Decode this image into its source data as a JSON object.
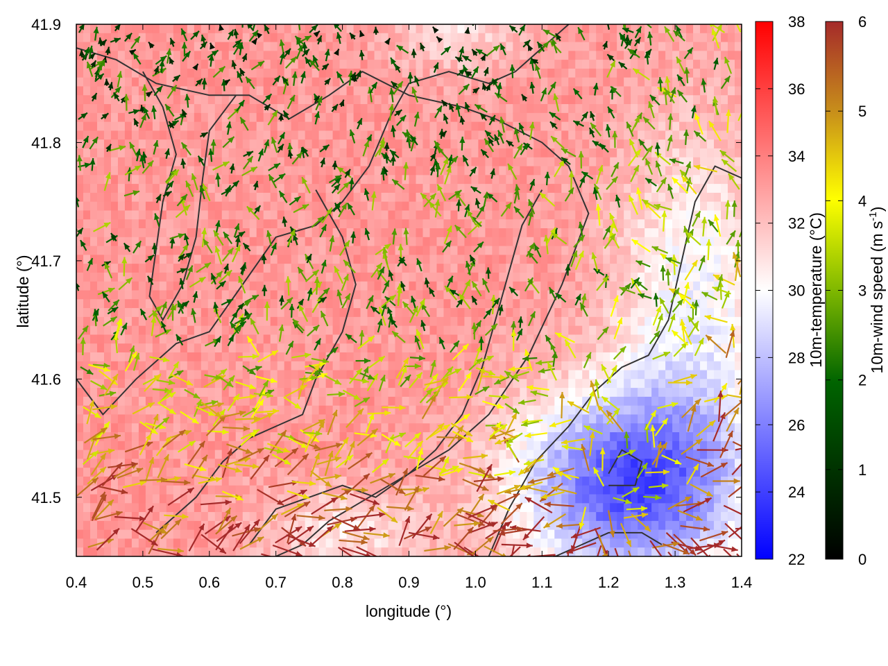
{
  "chart_data": {
    "type": "heatmap",
    "title": "",
    "xlabel": "longitude (°)",
    "ylabel": "latitude (°)",
    "xlim": [
      0.4,
      1.4
    ],
    "ylim": [
      41.45,
      41.9
    ],
    "xticks": [
      "0.4",
      "0.5",
      "0.6",
      "0.7",
      "0.8",
      "0.9",
      "1.0",
      "1.1",
      "1.2",
      "1.3",
      "1.4"
    ],
    "yticks": [
      "41.5",
      "41.6",
      "41.7",
      "41.8",
      "41.9"
    ],
    "temperature_colorbar": {
      "label": "10m-temperature (°C)",
      "range": [
        22,
        38
      ],
      "ticks": [
        "22",
        "24",
        "26",
        "28",
        "30",
        "32",
        "34",
        "36",
        "38"
      ],
      "colors": [
        "#0000ff",
        "#ffffff",
        "#ff0000"
      ]
    },
    "wind_colorbar": {
      "label_prefix": "10m-wind speed (m s",
      "label_sup": "-1",
      "label_suffix": ")",
      "range": [
        0,
        6
      ],
      "ticks": [
        "0",
        "1",
        "2",
        "3",
        "4",
        "5",
        "6"
      ],
      "colors": [
        "#000000",
        "#006400",
        "#7fb800",
        "#ffff00",
        "#c8901a",
        "#a52a2a"
      ]
    },
    "temperature_field_notes": {
      "warm_region": "west and north, about 32-35 °C",
      "cool_region": "south-east, down to about 24-26 °C near lon 1.15-1.35, lat 41.47-41.55"
    },
    "wind_field_notes": {
      "weak_winds": "north and centre, about 1-3 m/s",
      "strong_winds": "south and south-west, about 5-6 m/s"
    },
    "contour_lines": [
      [
        [
          0.4,
          41.88
        ],
        [
          0.46,
          41.87
        ],
        [
          0.52,
          41.85
        ],
        [
          0.6,
          41.84
        ],
        [
          0.66,
          41.84
        ],
        [
          0.72,
          41.82
        ],
        [
          0.78,
          41.84
        ],
        [
          0.83,
          41.86
        ],
        [
          0.9,
          41.84
        ],
        [
          0.98,
          41.83
        ],
        [
          1.03,
          41.82
        ],
        [
          1.1,
          41.8
        ],
        [
          1.14,
          41.78
        ],
        [
          1.17,
          41.74
        ],
        [
          1.13,
          41.68
        ],
        [
          1.08,
          41.62
        ],
        [
          1.02,
          41.57
        ],
        [
          0.96,
          41.54
        ],
        [
          0.9,
          41.52
        ],
        [
          0.84,
          41.5
        ],
        [
          0.78,
          41.48
        ],
        [
          0.74,
          41.46
        ],
        [
          0.7,
          41.45
        ]
      ],
      [
        [
          0.5,
          41.86
        ],
        [
          0.53,
          41.83
        ],
        [
          0.55,
          41.79
        ],
        [
          0.53,
          41.75
        ],
        [
          0.52,
          41.71
        ],
        [
          0.51,
          41.67
        ],
        [
          0.53,
          41.65
        ],
        [
          0.56,
          41.68
        ],
        [
          0.58,
          41.72
        ],
        [
          0.59,
          41.77
        ],
        [
          0.6,
          41.81
        ],
        [
          0.64,
          41.84
        ]
      ],
      [
        [
          0.4,
          41.6
        ],
        [
          0.44,
          41.57
        ],
        [
          0.49,
          41.6
        ],
        [
          0.55,
          41.63
        ],
        [
          0.6,
          41.64
        ],
        [
          0.65,
          41.68
        ],
        [
          0.7,
          41.72
        ],
        [
          0.76,
          41.73
        ],
        [
          0.8,
          41.75
        ],
        [
          0.84,
          41.78
        ],
        [
          0.87,
          41.82
        ],
        [
          0.9,
          41.85
        ],
        [
          0.96,
          41.86
        ],
        [
          1.02,
          41.85
        ],
        [
          1.06,
          41.86
        ],
        [
          1.1,
          41.88
        ],
        [
          1.14,
          41.9
        ]
      ],
      [
        [
          0.52,
          41.47
        ],
        [
          0.58,
          41.5
        ],
        [
          0.62,
          41.53
        ],
        [
          0.66,
          41.55
        ],
        [
          0.7,
          41.56
        ],
        [
          0.74,
          41.57
        ],
        [
          0.76,
          41.6
        ],
        [
          0.8,
          41.64
        ],
        [
          0.82,
          41.68
        ],
        [
          0.8,
          41.72
        ],
        [
          0.78,
          41.74
        ],
        [
          0.76,
          41.76
        ]
      ],
      [
        [
          0.66,
          41.46
        ],
        [
          0.7,
          41.49
        ],
        [
          0.75,
          41.5
        ],
        [
          0.8,
          41.51
        ],
        [
          0.85,
          41.5
        ],
        [
          0.9,
          41.52
        ],
        [
          0.94,
          41.54
        ],
        [
          0.98,
          41.57
        ],
        [
          1.01,
          41.61
        ],
        [
          1.03,
          41.65
        ],
        [
          1.05,
          41.69
        ],
        [
          1.07,
          41.73
        ],
        [
          1.1,
          41.76
        ]
      ],
      [
        [
          1.02,
          41.45
        ],
        [
          1.05,
          41.49
        ],
        [
          1.09,
          41.53
        ],
        [
          1.14,
          41.56
        ],
        [
          1.18,
          41.59
        ],
        [
          1.22,
          41.61
        ],
        [
          1.26,
          41.62
        ],
        [
          1.29,
          41.65
        ],
        [
          1.31,
          41.7
        ],
        [
          1.33,
          41.75
        ],
        [
          1.36,
          41.78
        ],
        [
          1.4,
          41.77
        ]
      ],
      [
        [
          1.2,
          41.51
        ],
        [
          1.24,
          41.51
        ],
        [
          1.25,
          41.53
        ],
        [
          1.22,
          41.54
        ],
        [
          1.2,
          41.52
        ]
      ],
      [
        [
          1.12,
          41.45
        ],
        [
          1.16,
          41.46
        ],
        [
          1.2,
          41.47
        ],
        [
          1.25,
          41.47
        ],
        [
          1.28,
          41.46
        ]
      ]
    ]
  }
}
